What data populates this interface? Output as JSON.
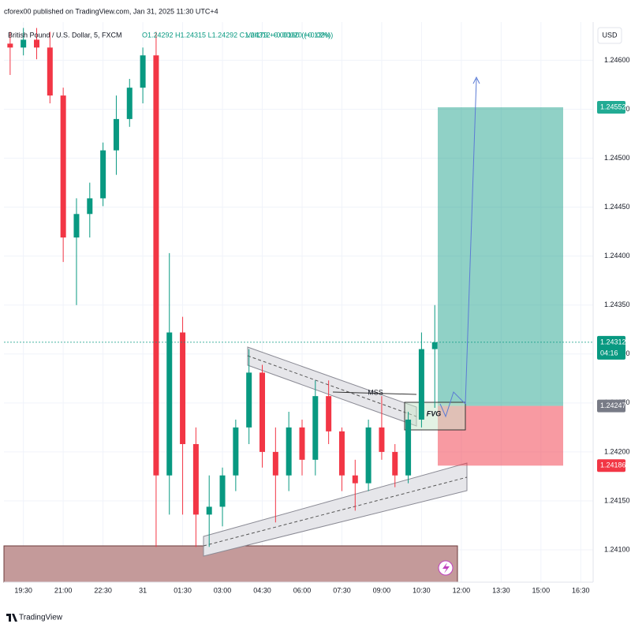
{
  "header": {
    "published": "cforex00 published on TradingView.com, Jan 31, 2025 11:30 UTC+4",
    "symbol": "British Pound / U.S. Dollar, 5, FXCM",
    "ohlc": "O1.24292 H1.24315 L1.24292 C1.24312 +0.00020 (+0.02%)",
    "volume": "Vol179 +0.00160 (+0.13%)",
    "currency": "USD"
  },
  "chart_data": {
    "type": "candlestick",
    "up_color": "#089981",
    "down_color": "#f23645",
    "x": [
      -300,
      -270,
      -240,
      -210,
      -180,
      -150,
      -120,
      -90,
      -60,
      -30,
      0,
      30,
      60,
      90,
      120,
      150,
      180,
      210,
      240,
      270,
      300,
      330,
      360,
      390,
      420,
      450,
      480,
      510,
      540,
      570,
      600,
      630,
      660
    ],
    "open": [
      1.24617,
      1.24613,
      1.24621,
      1.24613,
      1.24564,
      1.24419,
      1.24443,
      1.24459,
      1.24508,
      1.2454,
      1.24572,
      1.24605,
      1.24176,
      1.24322,
      1.24208,
      1.24136,
      1.24144,
      1.24176,
      1.24225,
      1.24281,
      1.242,
      1.24176,
      1.24225,
      1.24192,
      1.24257,
      1.24221,
      1.24176,
      1.24168,
      1.24225,
      1.242,
      1.24176,
      1.24233,
      1.24305
    ],
    "high": [
      1.24629,
      1.24633,
      1.24633,
      1.24629,
      1.24572,
      1.24459,
      1.24475,
      1.24516,
      1.24564,
      1.24581,
      1.24613,
      1.24629,
      1.24403,
      1.24338,
      1.24225,
      1.24176,
      1.24184,
      1.24233,
      1.24305,
      1.24289,
      1.24225,
      1.24241,
      1.24233,
      1.24273,
      1.24273,
      1.24225,
      1.24192,
      1.24233,
      1.24257,
      1.24208,
      1.24241,
      1.24322,
      1.2435
    ],
    "low": [
      1.24585,
      1.24605,
      1.24601,
      1.24556,
      1.24394,
      1.2435,
      1.24419,
      1.24451,
      1.24483,
      1.24532,
      1.24556,
      1.24103,
      1.24136,
      1.24136,
      1.24103,
      1.24103,
      1.24124,
      1.2416,
      1.24208,
      1.24184,
      1.24128,
      1.2416,
      1.24176,
      1.24176,
      1.24208,
      1.2416,
      1.2414,
      1.2416,
      1.24192,
      1.24164,
      1.24168,
      1.24225,
      1.24245
    ],
    "close": [
      1.24613,
      1.24621,
      1.24613,
      1.24564,
      1.24419,
      1.24443,
      1.24459,
      1.24508,
      1.2454,
      1.24572,
      1.24605,
      1.24176,
      1.24322,
      1.24208,
      1.24136,
      1.24144,
      1.24176,
      1.24225,
      1.24281,
      1.242,
      1.24176,
      1.24225,
      1.24192,
      1.24257,
      1.24221,
      1.24176,
      1.24168,
      1.24225,
      1.242,
      1.24176,
      1.24233,
      1.24305,
      1.24312
    ],
    "xlim": [
      -314,
      1018
    ],
    "xticks": [
      {
        "value": -270,
        "label": "19:30"
      },
      {
        "value": -180,
        "label": "21:00"
      },
      {
        "value": -90,
        "label": "22:30"
      },
      {
        "value": 0,
        "label": "31"
      },
      {
        "value": 90,
        "label": "01:30"
      },
      {
        "value": 180,
        "label": "03:00"
      },
      {
        "value": 270,
        "label": "04:30"
      },
      {
        "value": 360,
        "label": "06:00"
      },
      {
        "value": 450,
        "label": "07:30"
      },
      {
        "value": 540,
        "label": "09:00"
      },
      {
        "value": 630,
        "label": "10:30"
      },
      {
        "value": 720,
        "label": "12:00"
      },
      {
        "value": 810,
        "label": "13:30"
      },
      {
        "value": 900,
        "label": "15:00"
      },
      {
        "value": 990,
        "label": "16:30"
      }
    ],
    "ylim": [
      1.24067,
      1.24639
    ],
    "yticks": [
      {
        "value": 1.241,
        "label": "1.24100"
      },
      {
        "value": 1.2415,
        "label": "1.24150"
      },
      {
        "value": 1.242,
        "label": "1.24200"
      },
      {
        "value": 1.2425,
        "label": "1.24250"
      },
      {
        "value": 1.243,
        "label": "1.24300"
      },
      {
        "value": 1.2435,
        "label": "1.24350"
      },
      {
        "value": 1.244,
        "label": "1.24400"
      },
      {
        "value": 1.2445,
        "label": "1.24450"
      },
      {
        "value": 1.245,
        "label": "1.24500"
      },
      {
        "value": 1.2455,
        "label": "1.24550"
      },
      {
        "value": 1.246,
        "label": "1.24600"
      }
    ],
    "grid": true,
    "last_price": 1.24312,
    "countdown": "04:16",
    "position": {
      "target": 1.24552,
      "entry": 1.24247,
      "stop": 1.24186
    },
    "annotations": [
      "MSS",
      "FVG"
    ]
  },
  "footer": {
    "brand": "TradingView"
  }
}
